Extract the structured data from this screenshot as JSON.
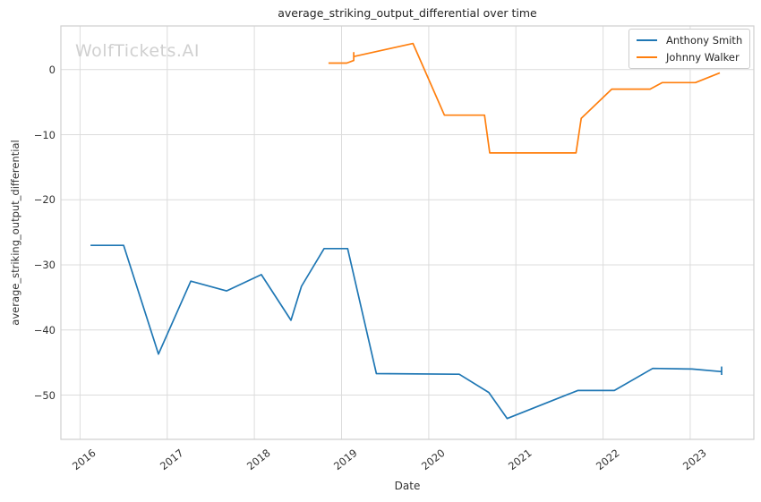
{
  "watermark": "WolfTickets.AI",
  "colors": {
    "grid": "#dcdcdc",
    "spine": "#cfcfcf",
    "tick_text": "#333333",
    "title_text": "#262626",
    "watermark_text": "#d0d0d0",
    "background": "#ffffff"
  },
  "chart_data": {
    "type": "line",
    "title": "average_striking_output_differential over time",
    "xlabel": "Date",
    "ylabel": "average_striking_output_differential",
    "grid": true,
    "legend_position": "upper right",
    "xlim": [
      2015.78,
      2023.73
    ],
    "ylim": [
      -56.8,
      6.7
    ],
    "x_ticks": [
      {
        "value": 2016,
        "label": "2016"
      },
      {
        "value": 2017,
        "label": "2017"
      },
      {
        "value": 2018,
        "label": "2018"
      },
      {
        "value": 2019,
        "label": "2019"
      },
      {
        "value": 2020,
        "label": "2020"
      },
      {
        "value": 2021,
        "label": "2021"
      },
      {
        "value": 2022,
        "label": "2022"
      },
      {
        "value": 2023,
        "label": "2023"
      }
    ],
    "y_ticks": [
      {
        "value": 0,
        "label": "0"
      },
      {
        "value": -10,
        "label": "−10"
      },
      {
        "value": -20,
        "label": "−20"
      },
      {
        "value": -30,
        "label": "−30"
      },
      {
        "value": -40,
        "label": "−40"
      },
      {
        "value": -50,
        "label": "−50"
      }
    ],
    "series": [
      {
        "name": "Anthony Smith",
        "color": "#1f77b4",
        "points": [
          [
            2016.12,
            -27.0
          ],
          [
            2016.5,
            -27.0
          ],
          [
            2016.9,
            -43.7
          ],
          [
            2017.27,
            -32.5
          ],
          [
            2017.68,
            -34.0
          ],
          [
            2018.08,
            -31.5
          ],
          [
            2018.42,
            -38.5
          ],
          [
            2018.54,
            -33.3
          ],
          [
            2018.8,
            -27.5
          ],
          [
            2019.07,
            -27.5
          ],
          [
            2019.4,
            -46.7
          ],
          [
            2020.35,
            -46.8
          ],
          [
            2020.69,
            -49.6
          ],
          [
            2020.9,
            -53.6
          ],
          [
            2021.71,
            -49.3
          ],
          [
            2022.13,
            -49.3
          ],
          [
            2022.57,
            -45.9
          ],
          [
            2023.02,
            -46.0
          ],
          [
            2023.36,
            -46.4
          ],
          [
            2023.36,
            -45.7
          ],
          [
            2023.36,
            -46.9
          ]
        ]
      },
      {
        "name": "Johnny Walker",
        "color": "#ff7f0e",
        "points": [
          [
            2018.85,
            1.0
          ],
          [
            2019.06,
            1.0
          ],
          [
            2019.14,
            1.4
          ],
          [
            2019.14,
            2.6
          ],
          [
            2019.14,
            2.0
          ],
          [
            2019.82,
            4.0
          ],
          [
            2020.18,
            -7.0
          ],
          [
            2020.64,
            -7.0
          ],
          [
            2020.7,
            -12.8
          ],
          [
            2021.69,
            -12.8
          ],
          [
            2021.75,
            -7.5
          ],
          [
            2022.1,
            -3.0
          ],
          [
            2022.54,
            -3.0
          ],
          [
            2022.68,
            -2.0
          ],
          [
            2023.06,
            -2.0
          ],
          [
            2023.34,
            -0.5
          ]
        ]
      }
    ]
  }
}
